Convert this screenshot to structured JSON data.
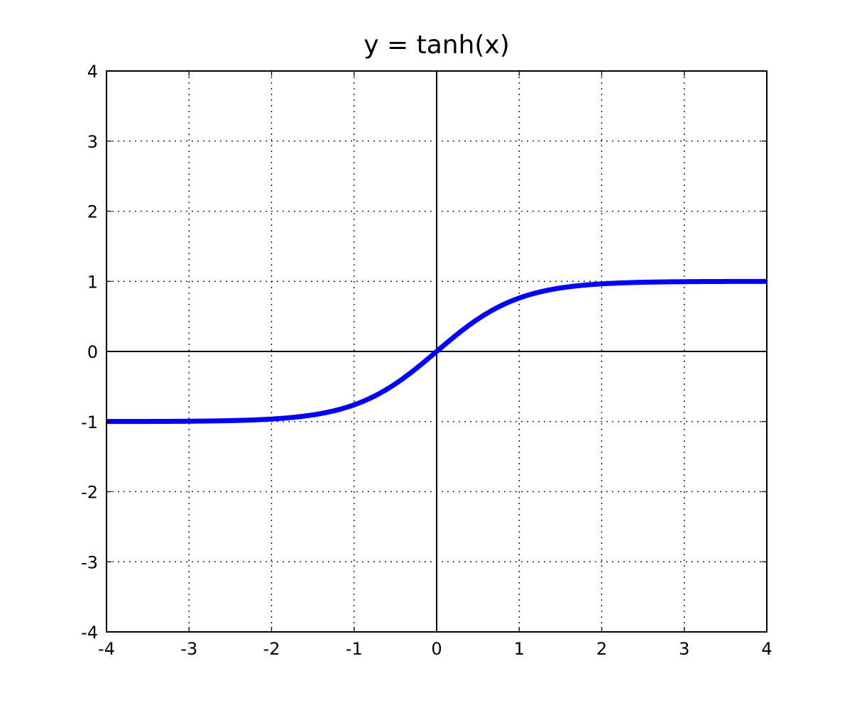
{
  "chart_data": {
    "type": "line",
    "title": "y = tanh(x)",
    "xlabel": "",
    "ylabel": "",
    "xlim": [
      -4,
      4
    ],
    "ylim": [
      -4,
      4
    ],
    "x_ticks": [
      -4,
      -3,
      -2,
      -1,
      0,
      1,
      2,
      3,
      4
    ],
    "y_ticks": [
      -4,
      -3,
      -2,
      -1,
      0,
      1,
      2,
      3,
      4
    ],
    "x_tick_labels": [
      "-4",
      "-3",
      "-2",
      "-1",
      "0",
      "1",
      "2",
      "3",
      "4"
    ],
    "y_tick_labels": [
      "-4",
      "-3",
      "-2",
      "-1",
      "0",
      "1",
      "2",
      "3",
      "4"
    ],
    "grid": true,
    "axes_through_origin": true,
    "colors": {
      "series": "#0000ff",
      "axis": "#000000",
      "background": "#ffffff"
    },
    "series": [
      {
        "function": "tanh",
        "x": [
          -4,
          -3.5,
          -3,
          -2.5,
          -2,
          -1.5,
          -1,
          -0.75,
          -0.5,
          -0.25,
          0,
          0.25,
          0.5,
          0.75,
          1,
          1.5,
          2,
          2.5,
          3,
          3.5,
          4
        ],
        "y": [
          -0.999,
          -0.998,
          -0.995,
          -0.987,
          -0.964,
          -0.905,
          -0.762,
          -0.635,
          -0.462,
          -0.245,
          0,
          0.245,
          0.462,
          0.635,
          0.762,
          0.905,
          0.964,
          0.987,
          0.995,
          0.998,
          0.999
        ]
      }
    ]
  }
}
